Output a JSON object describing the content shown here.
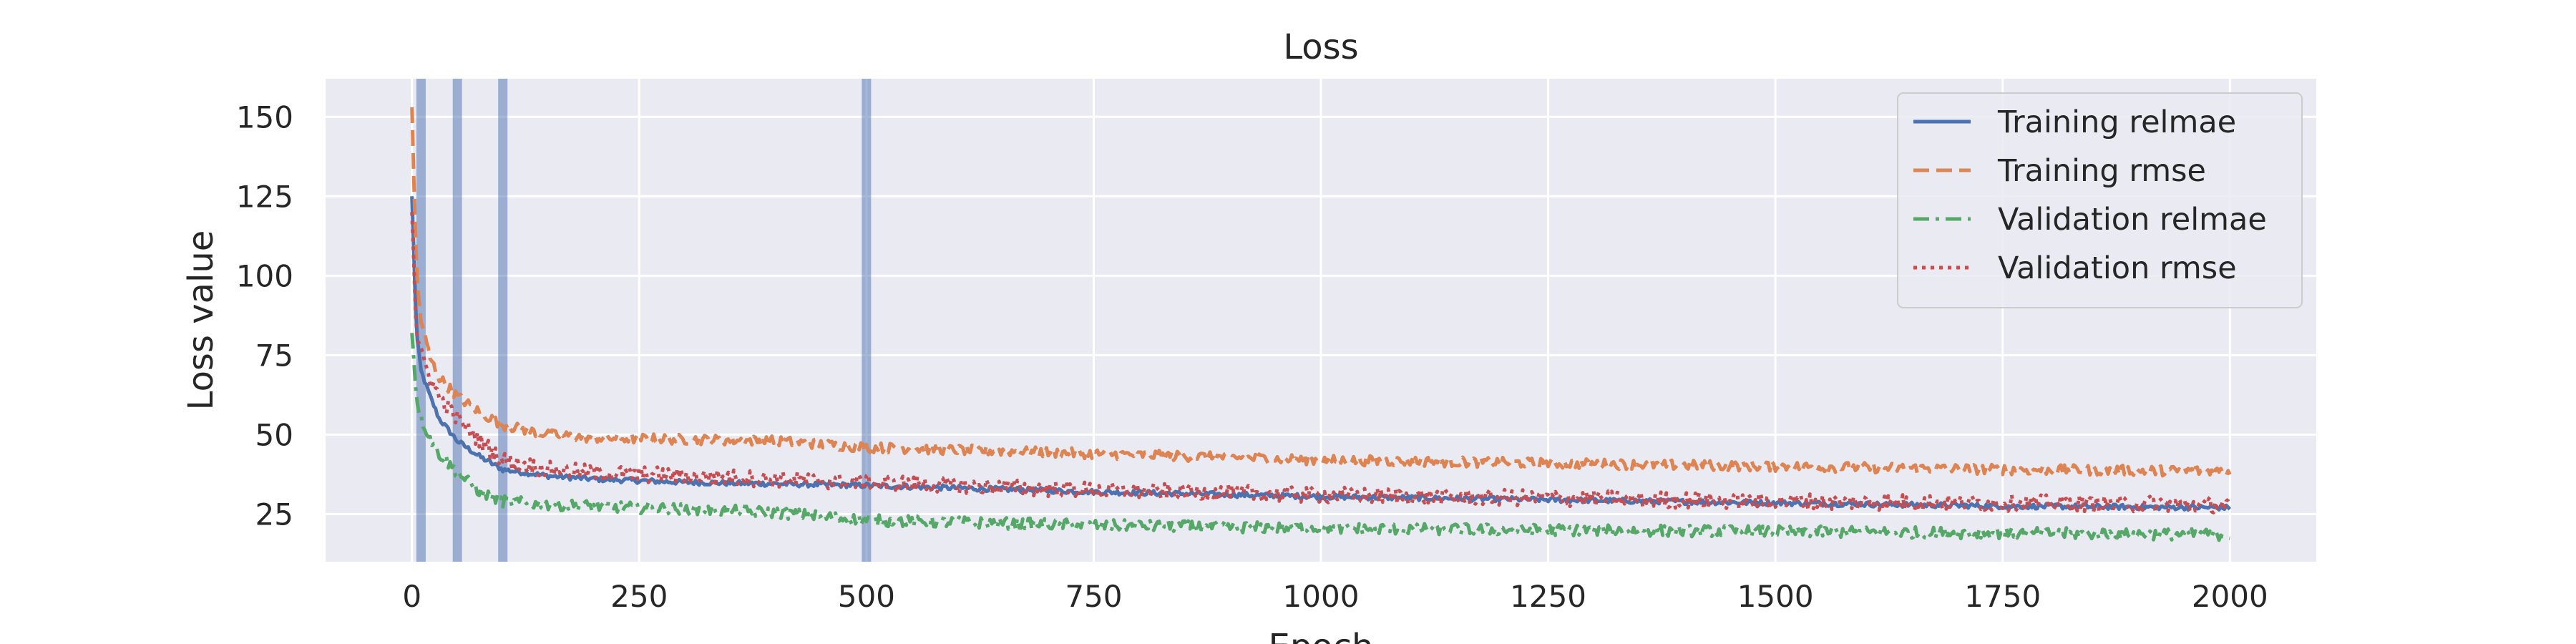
{
  "chart_data": {
    "type": "line",
    "title": "Loss",
    "xlabel": "Epoch",
    "ylabel": "Loss value",
    "xlim": [
      -95,
      2095
    ],
    "ylim": [
      10,
      162
    ],
    "x_ticks": [
      0,
      250,
      500,
      750,
      1000,
      1250,
      1500,
      1750,
      2000
    ],
    "y_ticks": [
      25,
      50,
      75,
      100,
      125,
      150
    ],
    "grid": true,
    "background_color": "#eaeaf2",
    "legend_position": "top-right",
    "vertical_markers": {
      "color": "#4c72b0",
      "x": [
        10,
        50,
        100,
        500
      ]
    },
    "series": [
      {
        "name": "Training relmae",
        "color": "#4c72b0",
        "linestyle": "solid",
        "noise": 0.8,
        "x": [
          0,
          5,
          10,
          20,
          30,
          50,
          75,
          100,
          150,
          200,
          300,
          400,
          500,
          750,
          1000,
          1250,
          1500,
          1750,
          2000
        ],
        "y": [
          125,
          82,
          70,
          62,
          55,
          48,
          43,
          39,
          37,
          36,
          35,
          34.5,
          34,
          32,
          30.5,
          29.5,
          28.5,
          27.5,
          27
        ]
      },
      {
        "name": "Training rmse",
        "color": "#dd8452",
        "linestyle": "dashed",
        "noise": 1.6,
        "x": [
          0,
          5,
          10,
          20,
          30,
          50,
          75,
          100,
          150,
          200,
          300,
          400,
          500,
          750,
          1000,
          1250,
          1500,
          1750,
          2000
        ],
        "y": [
          153,
          100,
          86,
          74,
          68,
          62,
          57,
          53,
          50,
          49,
          48.5,
          48,
          46,
          44,
          42,
          41,
          40,
          39,
          38.5
        ]
      },
      {
        "name": "Validation relmae",
        "color": "#55a868",
        "linestyle": "dashdot",
        "noise": 1.8,
        "x": [
          0,
          5,
          10,
          20,
          30,
          50,
          75,
          100,
          150,
          200,
          300,
          400,
          500,
          750,
          1000,
          1250,
          1500,
          1750,
          2000
        ],
        "y": [
          82,
          62,
          55,
          49,
          44,
          38,
          32,
          29,
          28,
          27.5,
          26.5,
          25.5,
          23,
          21.5,
          20.5,
          20,
          19.5,
          19,
          18.5
        ]
      },
      {
        "name": "Validation rmse",
        "color": "#c44e52",
        "linestyle": "dotted",
        "noise": 2.6,
        "x": [
          0,
          5,
          10,
          20,
          30,
          50,
          75,
          100,
          150,
          200,
          300,
          400,
          500,
          750,
          1000,
          1250,
          1500,
          1750,
          2000
        ],
        "y": [
          120,
          82,
          75,
          68,
          62,
          55,
          48,
          42,
          39,
          38,
          37,
          36,
          35,
          32.5,
          31,
          30,
          29,
          28.5,
          28
        ]
      }
    ]
  }
}
